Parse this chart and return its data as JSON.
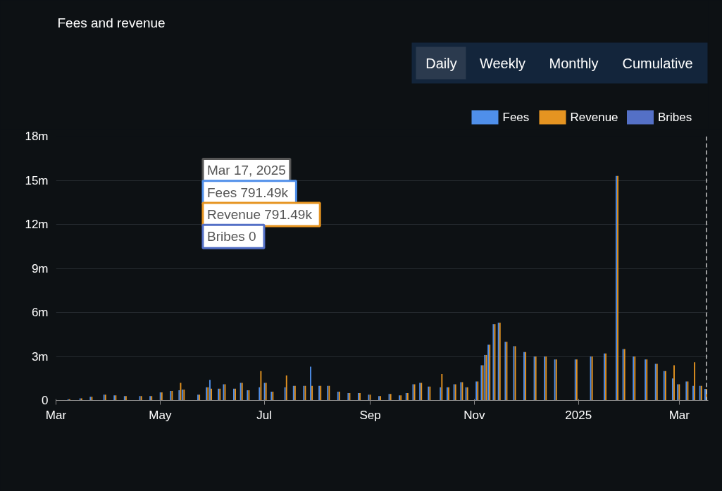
{
  "chart_data": {
    "type": "bar",
    "title": "Fees and revenue",
    "x": [
      "2024-03-02",
      "2024-03-09",
      "2024-03-16",
      "2024-03-22",
      "2024-03-30",
      "2024-04-05",
      "2024-04-11",
      "2024-04-20",
      "2024-04-26",
      "2024-05-02",
      "2024-05-08",
      "2024-05-13",
      "2024-05-15",
      "2024-05-18",
      "2024-05-24",
      "2024-05-29",
      "2024-05-31",
      "2024-06-05",
      "2024-06-08",
      "2024-06-14",
      "2024-06-18",
      "2024-06-22",
      "2024-06-29",
      "2024-07-02",
      "2024-07-06",
      "2024-07-14",
      "2024-07-19",
      "2024-07-25",
      "2024-07-29",
      "2024-08-03",
      "2024-08-08",
      "2024-08-14",
      "2024-08-20",
      "2024-08-26",
      "2024-09-01",
      "2024-09-07",
      "2024-09-13",
      "2024-09-19",
      "2024-09-23",
      "2024-09-27",
      "2024-10-01",
      "2024-10-06",
      "2024-10-13",
      "2024-10-17",
      "2024-10-21",
      "2024-10-25",
      "2024-10-28",
      "2024-11-03",
      "2024-11-06",
      "2024-11-08",
      "2024-11-10",
      "2024-11-13",
      "2024-11-16",
      "2024-11-20",
      "2024-11-25",
      "2024-12-01",
      "2024-12-07",
      "2024-12-13",
      "2024-12-19",
      "2024-12-31",
      "2025-01-09",
      "2025-01-17",
      "2025-01-24",
      "2025-01-28",
      "2025-02-03",
      "2025-02-10",
      "2025-02-16",
      "2025-02-21",
      "2025-02-26",
      "2025-03-01",
      "2025-03-06",
      "2025-03-10",
      "2025-03-14",
      "2025-03-17"
    ],
    "series": [
      {
        "name": "Fees",
        "color": "#4f8fea",
        "values": [
          0.02,
          0.08,
          0.15,
          0.25,
          0.4,
          0.35,
          0.3,
          0.3,
          0.3,
          0.55,
          0.65,
          0.7,
          0.75,
          0,
          0.4,
          0.9,
          1.4,
          0.8,
          1.1,
          0.8,
          1.2,
          0.7,
          0.9,
          1.2,
          0.6,
          0.9,
          1.0,
          1.0,
          2.3,
          1.0,
          1.0,
          0.6,
          0.5,
          0.5,
          0.4,
          0.3,
          0.45,
          0.35,
          0.5,
          1.1,
          1.2,
          0.95,
          0.9,
          0.9,
          1.1,
          1.25,
          0.9,
          1.3,
          2.4,
          3.1,
          3.8,
          5.2,
          5.3,
          4.0,
          3.7,
          3.3,
          3.0,
          3.0,
          2.8,
          2.8,
          3.0,
          3.2,
          15.3,
          3.5,
          3.0,
          2.8,
          2.5,
          2.0,
          1.5,
          1.1,
          1.3,
          1.0,
          1.0,
          0.79
        ]
      },
      {
        "name": "Revenue",
        "color": "#e59421",
        "values": [
          0.02,
          0.08,
          0.15,
          0.25,
          0.4,
          0.35,
          0.3,
          0.3,
          0.3,
          0.55,
          0.65,
          1.2,
          0.75,
          0,
          0.4,
          0.9,
          0.8,
          0.8,
          1.1,
          0.8,
          1.2,
          0.7,
          2.0,
          1.2,
          0.6,
          1.7,
          1.0,
          1.0,
          1.0,
          1.0,
          1.0,
          0.6,
          0.5,
          0.5,
          0.4,
          0.3,
          0.45,
          0.35,
          0.5,
          1.1,
          1.2,
          0.95,
          1.8,
          0.9,
          1.1,
          1.25,
          0.9,
          1.3,
          2.4,
          3.1,
          3.8,
          5.2,
          5.3,
          4.0,
          3.7,
          3.3,
          3.0,
          3.0,
          2.8,
          2.8,
          3.0,
          3.2,
          15.3,
          3.5,
          3.0,
          2.8,
          2.5,
          2.0,
          2.4,
          1.1,
          1.3,
          2.6,
          1.0,
          0.79
        ]
      },
      {
        "name": "Bribes",
        "color": "#5470c6",
        "values": [
          0,
          0,
          0,
          0,
          0,
          0,
          0,
          0,
          0,
          0,
          0,
          0,
          0,
          0,
          0,
          0,
          0,
          0,
          0,
          0,
          0,
          0,
          0,
          0,
          0,
          0,
          0,
          0,
          0,
          0,
          0,
          0,
          0,
          0,
          0,
          0,
          0,
          0,
          0,
          0,
          0,
          0,
          0,
          0,
          0,
          0,
          0,
          0,
          0,
          0,
          0,
          0,
          0,
          0,
          0,
          0,
          0,
          0,
          0,
          0,
          0,
          0,
          0,
          0,
          0,
          0,
          0,
          0,
          0,
          0,
          0,
          0,
          0,
          0
        ]
      }
    ],
    "xlim": [
      "2024-03-01",
      "2025-03-18"
    ],
    "xticks": [
      {
        "value": "2024-03-01",
        "label": "Mar"
      },
      {
        "value": "2024-05-01",
        "label": "May"
      },
      {
        "value": "2024-07-01",
        "label": "Jul"
      },
      {
        "value": "2024-09-01",
        "label": "Sep"
      },
      {
        "value": "2024-11-01",
        "label": "Nov"
      },
      {
        "value": "2025-01-01",
        "label": "2025"
      },
      {
        "value": "2025-03-01",
        "label": "Mar"
      }
    ],
    "ylim": [
      0,
      18
    ],
    "yticks": [
      0,
      {
        "value": 3,
        "label": "3m"
      },
      {
        "value": 6,
        "label": "6m"
      },
      {
        "value": 9,
        "label": "9m"
      },
      {
        "value": 12,
        "label": "12m"
      },
      {
        "value": 15,
        "label": "15m"
      },
      {
        "value": 18,
        "label": "18m"
      }
    ],
    "grid": "y",
    "legend": "top right",
    "ref_lines": [
      {
        "axis": "x",
        "value": "2025-03-17",
        "color": "#cccccc",
        "line_style": "dashed"
      }
    ],
    "annotations": [
      "Daily",
      "Weekly",
      "Monthly",
      "Cumulative",
      "Mar 17, 2025",
      "Fees  791.49k",
      "Revenue  791.49k",
      "Bribes  0"
    ]
  }
}
